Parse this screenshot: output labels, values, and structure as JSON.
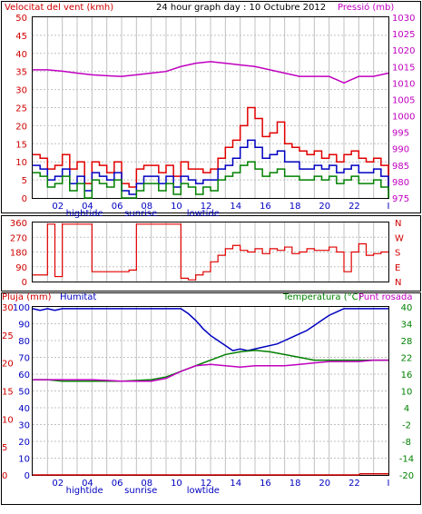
{
  "colors": {
    "wind": "#e00000",
    "gust": "#e00000",
    "avg": "#0000c0",
    "min": "#008000",
    "pressure": "#c000c0",
    "direction": "#e00000",
    "rain": "#d00000",
    "humidity": "#0000c0",
    "temperature": "#008000",
    "dewpoint": "#c000c0",
    "grid": "#c0c0c0",
    "axis_text": "#d00000",
    "label_text": "#000000"
  },
  "header": {
    "title": "24 hour graph day : 10 Octubre 2012",
    "wind_label": "Velocitat del vent (kmh)",
    "pressure_label": "Pressió (mb)",
    "rain_label": "Pluja (mm)",
    "humidity_label": "Humitat",
    "temperature_label": "Temperatura (°C)",
    "dewpoint_label": "Punt rosada"
  },
  "chart_data": [
    {
      "type": "line",
      "name": "wind_pressure",
      "x_ticks": [
        "02",
        "04",
        "06",
        "08",
        "10",
        "12",
        "14",
        "16",
        "18",
        "20",
        "22",
        "I"
      ],
      "x_markers": [
        {
          "label": "hightide",
          "x": 3.5
        },
        {
          "label": "sunrise",
          "x": 7.3
        },
        {
          "label": "lowtide",
          "x": 11.5
        }
      ],
      "wind_axis": {
        "ylim": [
          0,
          50
        ],
        "ticks": [
          0,
          5,
          10,
          15,
          20,
          25,
          30,
          35,
          40,
          45,
          50
        ]
      },
      "pressure_axis": {
        "ylim": [
          975,
          1030
        ],
        "ticks": [
          975,
          980,
          985,
          990,
          995,
          1000,
          1005,
          1010,
          1015,
          1020,
          1025,
          1030
        ]
      },
      "series": [
        {
          "key": "gust",
          "x": [
            0,
            0.5,
            1,
            1.5,
            2,
            2.5,
            3,
            3.5,
            4,
            4.5,
            5,
            5.5,
            6,
            6.5,
            7,
            7.5,
            8,
            8.5,
            9,
            9.5,
            10,
            10.5,
            11,
            11.5,
            12,
            12.5,
            13,
            13.5,
            14,
            14.5,
            15,
            15.5,
            16,
            16.5,
            17,
            17.5,
            18,
            18.5,
            19,
            19.5,
            20,
            20.5,
            21,
            21.5,
            22,
            22.5,
            23,
            23.5,
            24
          ],
          "values": [
            12,
            11,
            8,
            9,
            12,
            8,
            10,
            4,
            10,
            9,
            7,
            10,
            4,
            3,
            8,
            9,
            9,
            7,
            9,
            6,
            10,
            8,
            8,
            7,
            8,
            11,
            14,
            16,
            20,
            25,
            22,
            17,
            18,
            21,
            15,
            14,
            13,
            12,
            13,
            11,
            12,
            10,
            12,
            13,
            11,
            10,
            11,
            9,
            3
          ]
        },
        {
          "key": "avg",
          "x": [
            0,
            0.5,
            1,
            1.5,
            2,
            2.5,
            3,
            3.5,
            4,
            4.5,
            5,
            5.5,
            6,
            6.5,
            7,
            7.5,
            8,
            8.5,
            9,
            9.5,
            10,
            10.5,
            11,
            11.5,
            12,
            12.5,
            13,
            13.5,
            14,
            14.5,
            15,
            15.5,
            16,
            16.5,
            17,
            17.5,
            18,
            18.5,
            19,
            19.5,
            20,
            20.5,
            21,
            21.5,
            22,
            22.5,
            23,
            23.5,
            24
          ],
          "values": [
            9,
            8,
            5,
            6,
            8,
            4,
            6,
            2,
            7,
            6,
            5,
            7,
            2,
            1,
            4,
            6,
            6,
            4,
            6,
            3,
            6,
            5,
            4,
            5,
            5,
            8,
            9,
            11,
            14,
            16,
            14,
            11,
            12,
            13,
            10,
            10,
            8,
            8,
            9,
            8,
            9,
            7,
            8,
            9,
            7,
            7,
            8,
            6,
            2
          ]
        },
        {
          "key": "min",
          "x": [
            0,
            0.5,
            1,
            1.5,
            2,
            2.5,
            3,
            3.5,
            4,
            4.5,
            5,
            5.5,
            6,
            6.5,
            7,
            7.5,
            8,
            8.5,
            9,
            9.5,
            10,
            10.5,
            11,
            11.5,
            12,
            12.5,
            13,
            13.5,
            14,
            14.5,
            15,
            15.5,
            16,
            16.5,
            17,
            17.5,
            18,
            18.5,
            19,
            19.5,
            20,
            20.5,
            21,
            21.5,
            22,
            22.5,
            23,
            23.5,
            24
          ],
          "values": [
            7,
            6,
            3,
            4,
            6,
            2,
            4,
            0,
            5,
            4,
            3,
            5,
            0,
            0,
            2,
            4,
            4,
            2,
            4,
            1,
            4,
            3,
            1,
            3,
            2,
            5,
            6,
            7,
            9,
            10,
            8,
            6,
            7,
            8,
            6,
            6,
            5,
            5,
            6,
            5,
            6,
            4,
            5,
            6,
            4,
            4,
            5,
            3,
            0
          ]
        },
        {
          "key": "pressure",
          "x": [
            0,
            1,
            2,
            3,
            4,
            5,
            6,
            7,
            8,
            9,
            10,
            11,
            12,
            13,
            14,
            15,
            16,
            17,
            18,
            19,
            20,
            20.5,
            21,
            21.5,
            22,
            23,
            24
          ],
          "values": [
            1014,
            1014,
            1013.6,
            1013,
            1012.5,
            1012.2,
            1012,
            1012.5,
            1013,
            1013.5,
            1015,
            1016,
            1016.5,
            1016,
            1015.5,
            1015,
            1014,
            1013,
            1012,
            1012,
            1012,
            1011,
            1010,
            1011,
            1012,
            1012,
            1013
          ]
        }
      ]
    },
    {
      "type": "scatter",
      "name": "wind_direction",
      "ylim": [
        0,
        360
      ],
      "y_ticks": [
        0,
        90,
        180,
        270,
        360
      ],
      "compass": [
        "N",
        "W",
        "S",
        "E",
        "N"
      ],
      "series": [
        {
          "key": "direction",
          "x": [
            0,
            0.5,
            1,
            1.5,
            2,
            2.5,
            3,
            3.5,
            4,
            4.5,
            5,
            5.5,
            6,
            6.5,
            7,
            7.5,
            8,
            8.5,
            9,
            9.5,
            10,
            10.5,
            11,
            11.5,
            12,
            12.5,
            13,
            13.5,
            14,
            14.5,
            15,
            15.5,
            16,
            16.5,
            17,
            17.5,
            18,
            18.5,
            19,
            19.5,
            20,
            20.5,
            21,
            21.5,
            22,
            22.5,
            23,
            23.5,
            24
          ],
          "values": [
            40,
            40,
            350,
            30,
            350,
            350,
            350,
            350,
            60,
            60,
            60,
            60,
            60,
            70,
            350,
            350,
            350,
            350,
            350,
            350,
            20,
            10,
            40,
            60,
            120,
            160,
            200,
            220,
            190,
            180,
            200,
            170,
            200,
            190,
            210,
            170,
            180,
            200,
            190,
            190,
            210,
            180,
            60,
            180,
            230,
            160,
            170,
            180,
            180
          ]
        }
      ]
    },
    {
      "type": "line",
      "name": "temperature_humidity_rain",
      "rain_axis": {
        "ylim": [
          0,
          30
        ],
        "ticks": [
          0,
          5,
          10,
          15,
          20,
          25,
          30
        ]
      },
      "humidity_axis": {
        "ylim": [
          0,
          100
        ],
        "ticks": [
          0,
          10,
          20,
          30,
          40,
          50,
          60,
          70,
          80,
          90,
          100
        ]
      },
      "temperature_axis": {
        "ylim": [
          -20,
          40
        ],
        "ticks": [
          -20,
          -14,
          -8,
          -2,
          4,
          10,
          16,
          22,
          28,
          34,
          40
        ]
      },
      "series": [
        {
          "key": "humidity",
          "x": [
            0,
            0.5,
            1,
            1.5,
            2,
            4,
            6,
            8,
            10,
            10.5,
            11,
            11.5,
            12,
            12.5,
            13,
            13.5,
            14,
            14.5,
            15,
            15.5,
            16,
            16.5,
            17,
            17.5,
            18,
            18.5,
            19,
            19.5,
            20,
            20.5,
            21,
            22,
            23,
            24
          ],
          "values": [
            99,
            98,
            99,
            98,
            99,
            99,
            99,
            99,
            99,
            96,
            92,
            87,
            83,
            80,
            77,
            74,
            75,
            74,
            75,
            76,
            77,
            78,
            80,
            82,
            84,
            86,
            89,
            92,
            95,
            97,
            99,
            99,
            99,
            99
          ]
        },
        {
          "key": "temperature",
          "x": [
            0,
            1,
            2,
            4,
            6,
            8,
            9,
            10,
            11,
            12,
            13,
            14,
            15,
            16,
            17,
            18,
            19,
            20,
            21,
            22,
            23,
            24
          ],
          "values": [
            14,
            14,
            13.5,
            13.5,
            13.5,
            14,
            15,
            17,
            19,
            21,
            23,
            24,
            24.5,
            24,
            23,
            22,
            21,
            21,
            21,
            21,
            21,
            21
          ]
        },
        {
          "key": "dewpoint",
          "x": [
            0,
            1,
            2,
            4,
            6,
            8,
            9,
            10,
            11,
            12,
            13,
            14,
            15,
            16,
            17,
            18,
            19,
            20,
            21,
            22,
            23,
            24
          ],
          "values": [
            14,
            14,
            14,
            14,
            13.5,
            13.5,
            14.5,
            17,
            19,
            19.5,
            19,
            18.5,
            19,
            19,
            19,
            19.5,
            20,
            20.5,
            20.5,
            20.5,
            21,
            21
          ]
        },
        {
          "key": "rain",
          "x": [
            0,
            22,
            22.1,
            24
          ],
          "values": [
            0,
            0,
            0.2,
            0.2
          ]
        }
      ]
    }
  ]
}
